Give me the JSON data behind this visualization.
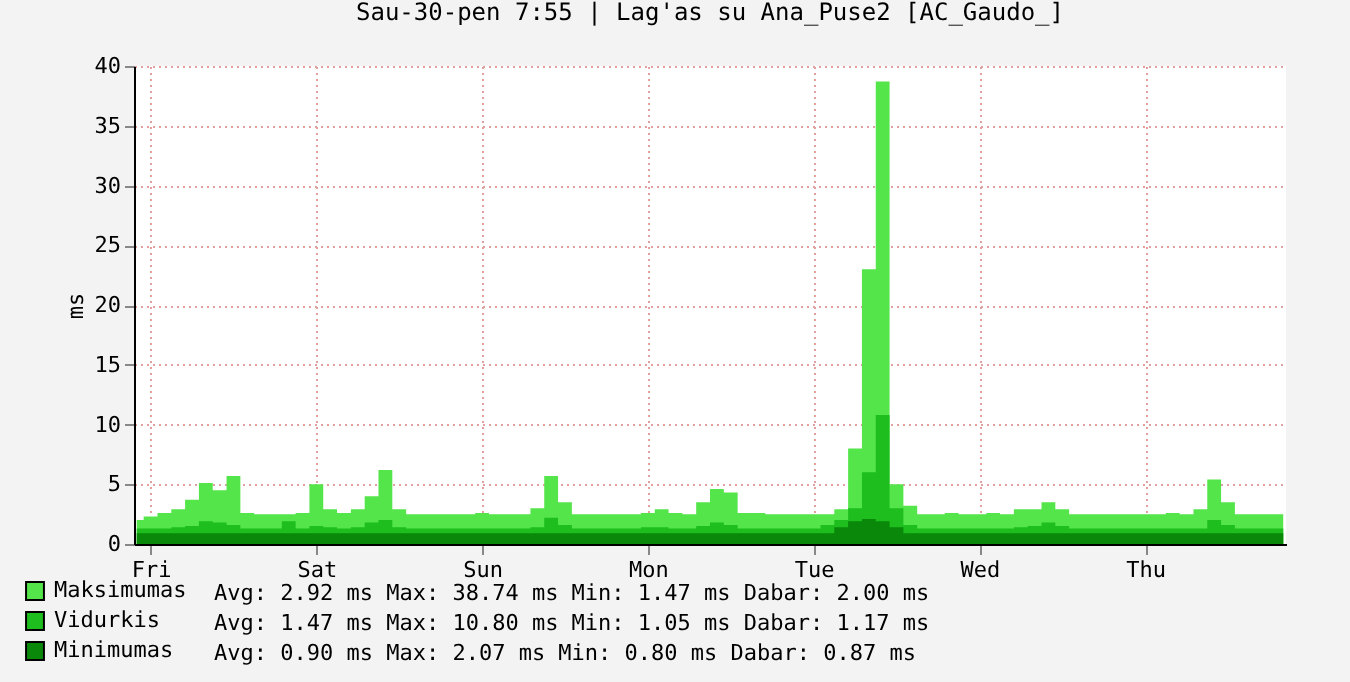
{
  "chart_data": {
    "type": "area",
    "title": "Sau-30-pen 7:55 | Lag'as su Ana_Puse2 [AC_Gaudo_]",
    "ylabel": "ms",
    "categories": [
      null,
      "Fri",
      null,
      null,
      null,
      null,
      null,
      null,
      null,
      null,
      null,
      null,
      null,
      "Sat",
      null,
      null,
      null,
      null,
      null,
      null,
      null,
      null,
      null,
      null,
      null,
      "Sun",
      null,
      null,
      null,
      null,
      null,
      null,
      null,
      null,
      null,
      null,
      null,
      "Mon",
      null,
      null,
      null,
      null,
      null,
      null,
      null,
      null,
      null,
      null,
      null,
      "Tue",
      null,
      null,
      null,
      null,
      null,
      null,
      null,
      null,
      null,
      null,
      null,
      "Wed",
      null,
      null,
      null,
      null,
      null,
      null,
      null,
      null,
      null,
      null,
      null,
      "Thu",
      null,
      null,
      null,
      null,
      null,
      null,
      null,
      null,
      null,
      null
    ],
    "series": [
      {
        "name": "Maksimumas",
        "color": "#54e54a",
        "values": [
          2.0,
          2.3,
          2.6,
          2.9,
          3.7,
          5.1,
          4.5,
          5.7,
          2.6,
          2.5,
          2.5,
          2.5,
          2.6,
          5.0,
          2.9,
          2.6,
          2.9,
          4.0,
          6.2,
          2.9,
          2.5,
          2.5,
          2.5,
          2.5,
          2.5,
          2.6,
          2.5,
          2.5,
          2.5,
          3.0,
          5.7,
          3.5,
          2.5,
          2.5,
          2.5,
          2.5,
          2.5,
          2.6,
          2.9,
          2.6,
          2.5,
          3.5,
          4.6,
          4.3,
          2.6,
          2.6,
          2.5,
          2.5,
          2.5,
          2.5,
          2.5,
          2.9,
          8.0,
          23.0,
          38.7,
          5.0,
          3.2,
          2.5,
          2.5,
          2.6,
          2.5,
          2.5,
          2.6,
          2.5,
          2.9,
          2.9,
          3.5,
          2.9,
          2.5,
          2.5,
          2.5,
          2.5,
          2.5,
          2.5,
          2.5,
          2.6,
          2.5,
          2.9,
          5.4,
          3.5,
          2.5,
          2.5,
          2.5,
          2.5
        ]
      },
      {
        "name": "Vidurkis",
        "color": "#1dbe1d",
        "values": [
          1.3,
          1.3,
          1.3,
          1.4,
          1.5,
          1.9,
          1.8,
          1.6,
          1.3,
          1.3,
          1.3,
          1.9,
          1.3,
          1.5,
          1.4,
          1.3,
          1.4,
          1.8,
          2.0,
          1.4,
          1.3,
          1.3,
          1.3,
          1.3,
          1.3,
          1.3,
          1.3,
          1.3,
          1.3,
          1.4,
          2.2,
          1.6,
          1.3,
          1.3,
          1.3,
          1.3,
          1.3,
          1.4,
          1.4,
          1.3,
          1.3,
          1.5,
          1.8,
          1.6,
          1.3,
          1.3,
          1.3,
          1.3,
          1.3,
          1.3,
          1.6,
          2.0,
          3.0,
          6.0,
          10.8,
          3.0,
          1.6,
          1.3,
          1.3,
          1.3,
          1.3,
          1.3,
          1.3,
          1.3,
          1.4,
          1.5,
          1.8,
          1.5,
          1.3,
          1.3,
          1.3,
          1.3,
          1.3,
          1.3,
          1.3,
          1.3,
          1.3,
          1.3,
          2.0,
          1.6,
          1.3,
          1.3,
          1.3,
          1.3
        ]
      },
      {
        "name": "Minimumas",
        "color": "#0a880a",
        "values": [
          0.9,
          0.9,
          0.9,
          0.9,
          0.9,
          0.9,
          0.9,
          0.9,
          0.9,
          0.9,
          0.9,
          0.9,
          0.9,
          0.9,
          0.9,
          0.9,
          0.9,
          0.9,
          0.9,
          0.9,
          0.9,
          0.9,
          0.9,
          0.9,
          0.9,
          0.9,
          0.9,
          0.9,
          0.9,
          0.9,
          0.9,
          0.9,
          0.9,
          0.9,
          0.9,
          0.9,
          0.9,
          0.9,
          0.9,
          0.9,
          0.9,
          0.9,
          0.9,
          0.9,
          0.9,
          0.9,
          0.9,
          0.9,
          0.9,
          0.9,
          0.9,
          1.4,
          1.9,
          2.1,
          1.9,
          1.4,
          0.9,
          0.9,
          0.9,
          0.9,
          0.9,
          0.9,
          0.9,
          0.9,
          0.9,
          0.9,
          0.9,
          0.9,
          0.9,
          0.9,
          0.9,
          0.9,
          0.9,
          0.9,
          0.9,
          0.9,
          0.9,
          0.9,
          0.9,
          0.9,
          0.9,
          0.9,
          0.9,
          0.9
        ]
      }
    ],
    "ylim": [
      0,
      40
    ],
    "yticks": [
      0,
      5,
      10,
      15,
      20,
      25,
      30,
      35,
      40
    ],
    "grid": true,
    "legend": "bottom",
    "annotations": [
      "Avg:    2.92 ms   Max:   38.74 ms   Min:    1.47 ms   Dabar:    2.00 ms",
      "Avg:    1.47 ms   Max:   10.80 ms   Min:    1.05 ms   Dabar:    1.17 ms",
      "Avg:    0.90 ms      Max:    2.07 ms      Min:    0.80 ms      Dabar:    0.87 ms"
    ]
  }
}
